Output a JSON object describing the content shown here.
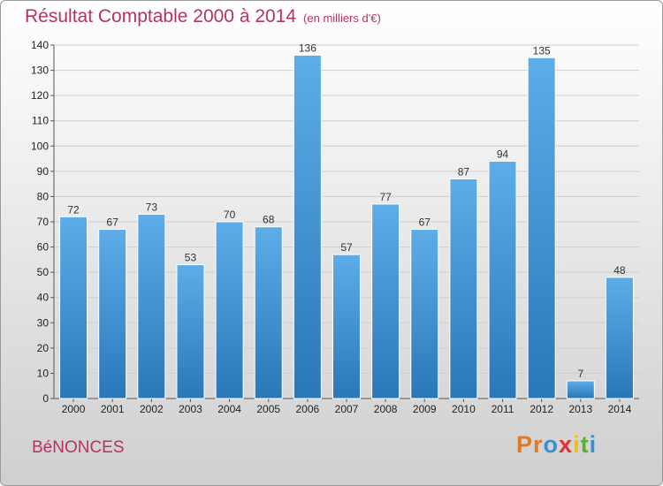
{
  "header": {
    "title": "Résultat Comptable 2000 à 2014",
    "subtitle": "(en milliers d'€)"
  },
  "footer": {
    "city": "BéNONCES",
    "logo": [
      "P",
      "r",
      "o",
      "x",
      "i",
      "t",
      "i"
    ]
  },
  "colors": {
    "title": "#b8335c",
    "bar_top": "#5dade8",
    "bar_bottom": "#2a77b8",
    "logo": [
      "#e07a22",
      "#e07a22",
      "#3a8fd0",
      "#e03030",
      "#e6c31c",
      "#58b030",
      "#3a8fd0"
    ]
  },
  "chart_data": {
    "type": "bar",
    "title": "Résultat Comptable 2000 à 2014",
    "subtitle": "(en milliers d'€)",
    "categories": [
      "2000",
      "2001",
      "2002",
      "2003",
      "2004",
      "2005",
      "2006",
      "2007",
      "2008",
      "2009",
      "2010",
      "2011",
      "2012",
      "2013",
      "2014"
    ],
    "values": [
      72,
      67,
      73,
      53,
      70,
      68,
      136,
      57,
      77,
      67,
      87,
      94,
      135,
      7,
      48
    ],
    "ylim": [
      0,
      140
    ],
    "yticks": [
      0,
      10,
      20,
      30,
      40,
      50,
      60,
      70,
      80,
      90,
      100,
      110,
      120,
      130,
      140
    ],
    "grid": true,
    "legend": "none"
  }
}
